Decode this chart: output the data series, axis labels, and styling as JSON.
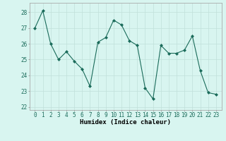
{
  "x": [
    0,
    1,
    2,
    3,
    4,
    5,
    6,
    7,
    8,
    9,
    10,
    11,
    12,
    13,
    14,
    15,
    16,
    17,
    18,
    19,
    20,
    21,
    22,
    23
  ],
  "y": [
    27.0,
    28.1,
    26.0,
    25.0,
    25.5,
    24.9,
    24.4,
    23.3,
    26.1,
    26.4,
    27.5,
    27.2,
    26.2,
    25.9,
    23.2,
    22.5,
    25.9,
    25.4,
    25.4,
    25.6,
    26.5,
    24.3,
    22.9,
    22.8
  ],
  "line_color": "#1a6b5a",
  "marker": "D",
  "marker_size": 2.0,
  "bg_color": "#d8f5f0",
  "grid_color": "#c0e0da",
  "xlabel": "Humidex (Indice chaleur)",
  "ylim": [
    21.8,
    28.6
  ],
  "yticks": [
    22,
    23,
    24,
    25,
    26,
    27,
    28
  ],
  "xticks": [
    0,
    1,
    2,
    3,
    4,
    5,
    6,
    7,
    8,
    9,
    10,
    11,
    12,
    13,
    14,
    15,
    16,
    17,
    18,
    19,
    20,
    21,
    22,
    23
  ],
  "label_fontsize": 6.5,
  "tick_fontsize": 5.5
}
